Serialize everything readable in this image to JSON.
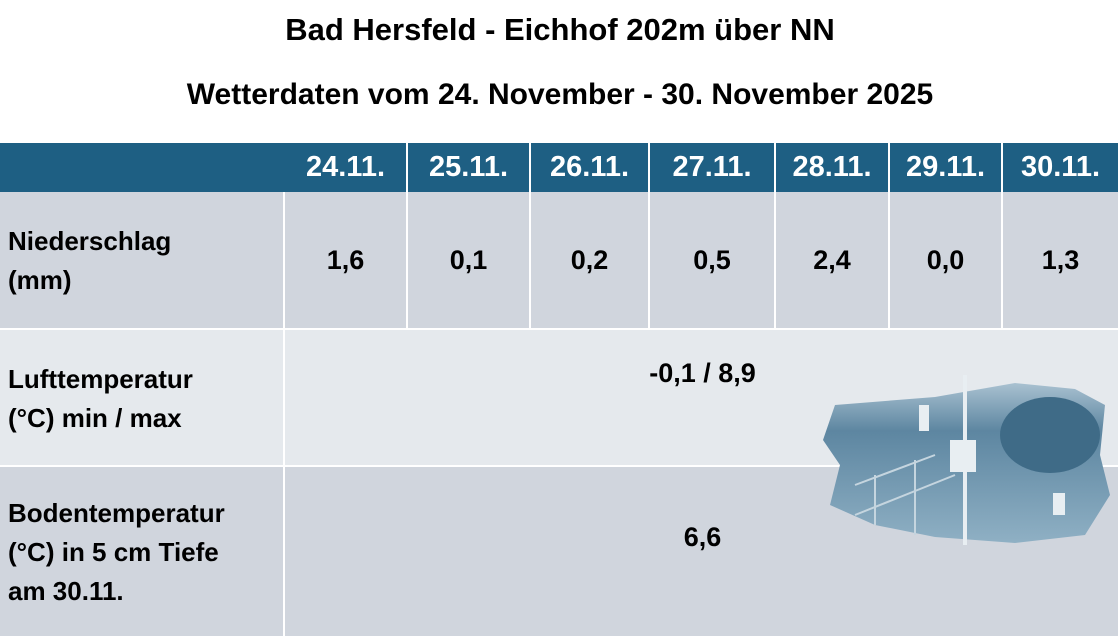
{
  "header": {
    "title": "Bad Hersfeld - Eichhof 202m über NN",
    "subtitle": "Wetterdaten vom 24. November - 30. November 2025"
  },
  "table": {
    "columns": [
      "24.11.",
      "25.11.",
      "26.11.",
      "27.11.",
      "28.11.",
      "29.11.",
      "30.11."
    ],
    "rows": [
      {
        "label": [
          "Niederschlag",
          "(mm)"
        ],
        "values": [
          "1,6",
          "0,1",
          "0,2",
          "0,5",
          "2,4",
          "0,0",
          "1,3"
        ]
      },
      {
        "label": [
          "Lufttemperatur",
          "(°C) min / max"
        ],
        "value": "-0,1 / 8,9"
      },
      {
        "label": [
          "Bodentemperatur",
          "(°C) in 5 cm Tiefe",
          "am 30.11."
        ],
        "value": "6,6"
      }
    ]
  }
}
